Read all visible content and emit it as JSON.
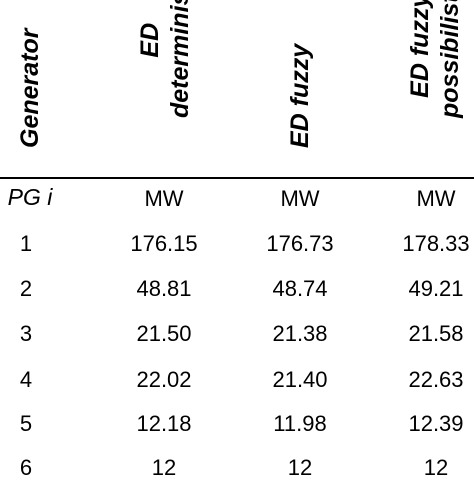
{
  "headers": {
    "generator": "Generator",
    "ed_deterministic": [
      "ED",
      "deterministic"
    ],
    "ed_fuzzy": "ED fuzzy",
    "ed_fuzzy_possibilistic": [
      "ED fuzzy",
      "possibilistic"
    ]
  },
  "units": [
    "PG i",
    "MW",
    "MW",
    "MW"
  ],
  "rows": [
    [
      "1",
      "176.15",
      "176.73",
      "178.33"
    ],
    [
      "2",
      "48.81",
      "48.74",
      "49.21"
    ],
    [
      "3",
      "21.50",
      "21.38",
      "21.58"
    ],
    [
      "4",
      "22.02",
      "21.40",
      "22.63"
    ],
    [
      "5",
      "12.18",
      "11.98",
      "12.39"
    ],
    [
      "6",
      "12",
      "12",
      "12"
    ]
  ]
}
